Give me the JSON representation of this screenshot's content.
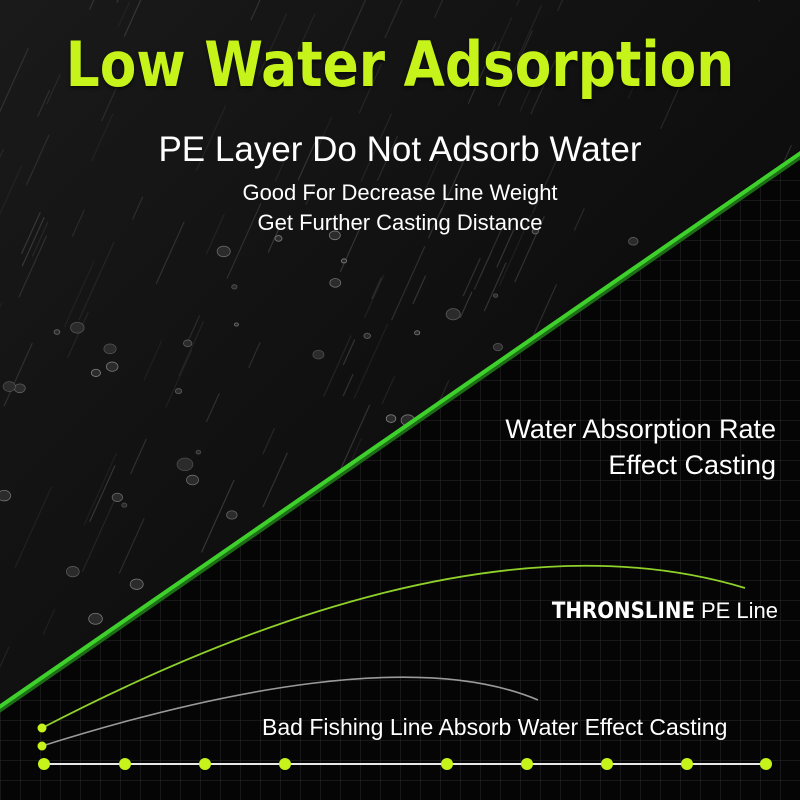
{
  "headline": "Low Water Adsorption",
  "subheadline": "PE Layer Do Not Adsorb Water",
  "benefits": [
    "Good For Decrease Line Weight",
    "Get Further Casting Distance"
  ],
  "comparison": {
    "label_line1": "Water Absorption Rate",
    "label_line2": "Effect Casting",
    "good_line": {
      "brand": "THRONSLINE",
      "product": "PE Line",
      "color": "#8fd12a"
    },
    "bad_line": {
      "label": "Bad Fishing Line Absorb Water Effect Casting",
      "color": "#9a9a9a"
    },
    "scale_marker_color": "#c6f31a"
  },
  "colors": {
    "accent": "#c6f31a",
    "line_green": "#3ed12c",
    "background": "#000000"
  }
}
